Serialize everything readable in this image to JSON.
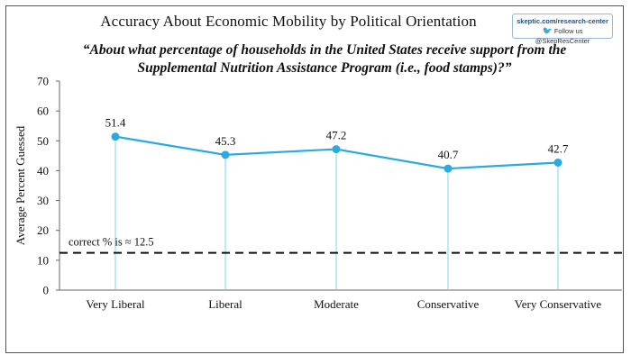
{
  "header": {
    "title": "Accuracy About Economic Mobility by Political Orientation",
    "subtitle_line1": "“About what percentage of households in the United States receive support from the",
    "subtitle_line2": "Supplemental Nutrition Assistance Program (i.e.,  food stamps)?”"
  },
  "badge": {
    "url": "skeptic.com/research-center",
    "follow": "Follow us @SkepResCenter",
    "icon": "bird-icon"
  },
  "reference": {
    "label": "correct % is ≈  12.5",
    "value": 12.5
  },
  "chart_data": {
    "type": "line",
    "title": "Accuracy About Economic Mobility by Political Orientation",
    "xlabel": "",
    "ylabel": "Average Percent Guessed",
    "categories": [
      "Very Liberal",
      "Liberal",
      "Moderate",
      "Conservative",
      "Very Conservative"
    ],
    "values": [
      51.4,
      45.3,
      47.2,
      40.7,
      42.7
    ],
    "value_labels": [
      "51.4",
      "45.3",
      "47.2",
      "40.7",
      "42.7"
    ],
    "ylim": [
      0,
      70
    ],
    "yticks": [
      0,
      10,
      20,
      30,
      40,
      50,
      60,
      70
    ],
    "grid": false,
    "line_color": "#29abe2",
    "drop_line_color": "#7fd3f2",
    "reference_line_color": "#111111"
  }
}
